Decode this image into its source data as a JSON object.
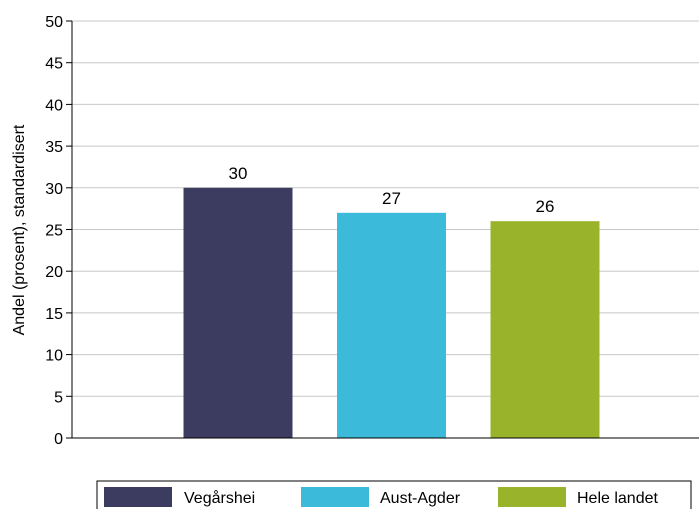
{
  "chart_data": {
    "type": "bar",
    "categories": [
      "Vegårshei",
      "Aust-Agder",
      "Hele landet"
    ],
    "values": [
      30,
      27,
      26
    ],
    "data_labels": [
      "30",
      "27",
      "26"
    ],
    "colors": [
      "#3b3c60",
      "#3bbbd9",
      "#99b42b"
    ],
    "title": "",
    "xlabel": "",
    "ylabel": "Andel (prosent), standardisert",
    "ylim": [
      0,
      50
    ],
    "yticks": [
      0,
      5,
      10,
      15,
      20,
      25,
      30,
      35,
      40,
      45,
      50
    ],
    "ytick_labels": [
      "0",
      "5",
      "10",
      "15",
      "20",
      "25",
      "30",
      "35",
      "40",
      "45",
      "50"
    ],
    "grid": true,
    "legend_position": "bottom"
  }
}
